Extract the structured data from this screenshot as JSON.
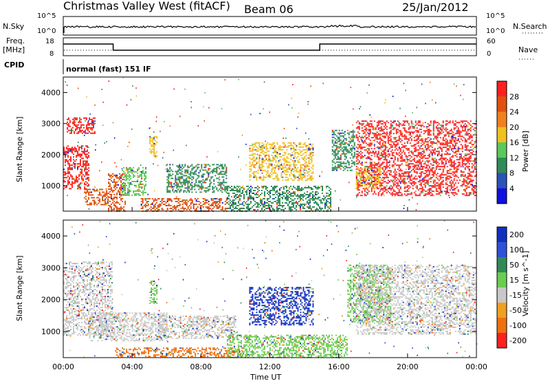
{
  "header": {
    "station": "Christmas Valley West (fitACF)",
    "beam": "Beam 06",
    "date": "25/Jan/2012"
  },
  "left_labels": {
    "nsky": "N.Sky",
    "freq": "Freq.",
    "freq_unit": "[MHz]",
    "cpid": "CPID"
  },
  "right_labels": {
    "nsearch": "N.Search",
    "nave": "Nave"
  },
  "cpid_text": "normal (fast) 151 IF",
  "noise_axis": {
    "left_top": "10^5",
    "left_bottom": "10^0",
    "right_top": "10^5",
    "right_bottom": "10^0"
  },
  "freq_axis": {
    "left_top": "18",
    "left_bottom": "8",
    "right_top": "60",
    "right_bottom": "0"
  },
  "x_axis": {
    "label": "Time UT",
    "ticks": [
      "00:00",
      "04:00",
      "08:00",
      "12:00",
      "16:00",
      "20:00",
      "00:00"
    ]
  },
  "range_axis": {
    "label": "Slant Range [km]",
    "ticks": [
      "1000",
      "2000",
      "3000",
      "4000"
    ]
  },
  "power_bar": {
    "title": "Power [dB]",
    "ticks": [
      "4",
      "8",
      "12",
      "16",
      "20",
      "24",
      "28"
    ],
    "colors": [
      "#1010e0",
      "#2a52b8",
      "#2e8b57",
      "#5ac85a",
      "#f0c020",
      "#f08020",
      "#e05010",
      "#ff2020"
    ]
  },
  "velocity_bar": {
    "title": "Velocity [m s^-1]",
    "ticks": [
      "200",
      "100",
      "50",
      "15",
      "-15",
      "-50",
      "-100",
      "-200"
    ],
    "colors": [
      "#1030c0",
      "#3050d8",
      "#2e8b57",
      "#6acc50",
      "#c8c8c8",
      "#f0a020",
      "#f07010",
      "#ff2020"
    ]
  },
  "chart_data": {
    "type": "heatmap",
    "panels": [
      {
        "name": "power",
        "quantity": "Power [dB]",
        "xlim": [
          "00:00",
          "24:00"
        ],
        "ylim_km": [
          180,
          4500
        ],
        "regions": [
          {
            "t0": 0.2,
            "t1": 1.8,
            "r0": 2700,
            "r1": 3200,
            "level": "28"
          },
          {
            "t0": 0.0,
            "t1": 1.5,
            "r0": 900,
            "r1": 2300,
            "level": "28"
          },
          {
            "t0": 1.2,
            "t1": 2.6,
            "r0": 400,
            "r1": 900,
            "level": "24"
          },
          {
            "t0": 2.6,
            "t1": 3.6,
            "r0": 180,
            "r1": 1400,
            "level": "24"
          },
          {
            "t0": 3.4,
            "t1": 4.8,
            "r0": 700,
            "r1": 1600,
            "level": "12"
          },
          {
            "t0": 5.0,
            "t1": 5.4,
            "r0": 1900,
            "r1": 2600,
            "level": "16"
          },
          {
            "t0": 4.5,
            "t1": 9.5,
            "r0": 200,
            "r1": 600,
            "level": "24"
          },
          {
            "t0": 6.0,
            "t1": 9.5,
            "r0": 800,
            "r1": 1700,
            "level": "8"
          },
          {
            "t0": 10.8,
            "t1": 14.5,
            "r0": 1200,
            "r1": 2400,
            "level": "16"
          },
          {
            "t0": 9.5,
            "t1": 15.5,
            "r0": 200,
            "r1": 1000,
            "level": "8"
          },
          {
            "t0": 15.6,
            "t1": 16.9,
            "r0": 1500,
            "r1": 2800,
            "level": "8"
          },
          {
            "t0": 17.0,
            "t1": 24.0,
            "r0": 700,
            "r1": 3100,
            "level": "28"
          },
          {
            "t0": 17.0,
            "t1": 18.5,
            "r0": 900,
            "r1": 1600,
            "level": "16"
          }
        ]
      },
      {
        "name": "velocity",
        "quantity": "Velocity [m s^-1]",
        "xlim": [
          "00:00",
          "24:00"
        ],
        "ylim_km": [
          180,
          4500
        ],
        "regions": [
          {
            "t0": 0.0,
            "t1": 2.8,
            "r0": 900,
            "r1": 3200,
            "level": "-15"
          },
          {
            "t0": 1.5,
            "t1": 6.0,
            "r0": 700,
            "r1": 1600,
            "level": "-15"
          },
          {
            "t0": 5.0,
            "t1": 5.4,
            "r0": 1900,
            "r1": 2600,
            "level": "15"
          },
          {
            "t0": 5.5,
            "t1": 10.0,
            "r0": 800,
            "r1": 1500,
            "level": "-15"
          },
          {
            "t0": 3.0,
            "t1": 10.5,
            "r0": 200,
            "r1": 500,
            "level": "-100"
          },
          {
            "t0": 10.8,
            "t1": 14.5,
            "r0": 1200,
            "r1": 2400,
            "level": "200"
          },
          {
            "t0": 9.5,
            "t1": 16.5,
            "r0": 200,
            "r1": 900,
            "level": "15"
          },
          {
            "t0": 16.5,
            "t1": 19.0,
            "r0": 1300,
            "r1": 3100,
            "level": "15"
          },
          {
            "t0": 17.0,
            "t1": 24.0,
            "r0": 900,
            "r1": 3100,
            "level": "-15"
          }
        ]
      }
    ],
    "noise_series_level": "nearly constant, log scale",
    "frequency_steps": [
      {
        "t0": 0.0,
        "t1": 2.9,
        "level": "high"
      },
      {
        "t0": 2.9,
        "t1": 14.9,
        "level": "low"
      },
      {
        "t0": 14.9,
        "t1": 24.0,
        "level": "high"
      }
    ]
  }
}
